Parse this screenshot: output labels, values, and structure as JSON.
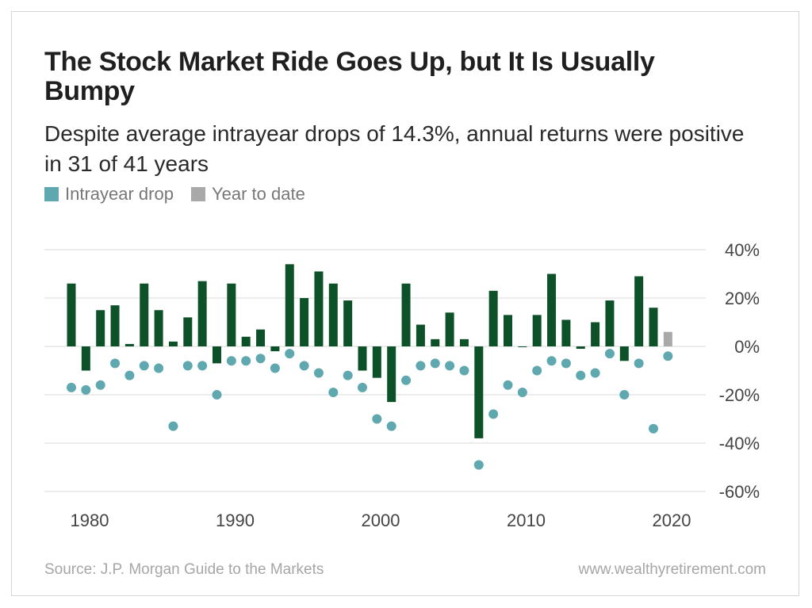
{
  "header": {
    "title": "The Stock Market Ride Goes Up, but It Is Usually Bumpy",
    "subtitle": "Despite average intrayear drops of 14.3%, annual returns were positive in 31 of 41 years"
  },
  "legend": {
    "items": [
      {
        "label": "Intrayear drop",
        "color": "#5fa8b0"
      },
      {
        "label": "Year to date",
        "color": "#a9a9a9"
      }
    ]
  },
  "footer": {
    "source": "Source: J.P. Morgan Guide to the Markets",
    "website": "www.wealthyretirement.com"
  },
  "colors": {
    "annual_return_bar": "#0d5128",
    "intrayear_drop_dot": "#5fa8b0",
    "year_to_date_bar": "#a9a9a9",
    "gridline": "#d9d9d9"
  },
  "chart_data": {
    "type": "bar",
    "ylim": [
      -60,
      40
    ],
    "y_ticks": [
      40,
      20,
      0,
      -20,
      -40,
      -60
    ],
    "y_tick_labels": [
      "40%",
      "20%",
      "0%",
      "-20%",
      "-40%",
      "-60%"
    ],
    "x_ticks": [
      1980,
      1990,
      2000,
      2010,
      2020
    ],
    "x_tick_labels": [
      "1980",
      "1990",
      "2000",
      "2010",
      "2020"
    ],
    "grid": true,
    "legend_position": "top-left",
    "series": [
      {
        "name": "",
        "type": "bar",
        "x": [
          1980,
          1981,
          1982,
          1983,
          1984,
          1985,
          1986,
          1987,
          1988,
          1989,
          1990,
          1991,
          1992,
          1993,
          1994,
          1995,
          1996,
          1997,
          1998,
          1999,
          2000,
          2001,
          2002,
          2003,
          2004,
          2005,
          2006,
          2007,
          2008,
          2009,
          2010,
          2011,
          2012,
          2013,
          2014,
          2015,
          2016,
          2017,
          2018,
          2019,
          2020
        ],
        "values": [
          26,
          -10,
          15,
          17,
          1,
          26,
          15,
          2,
          12,
          27,
          -7,
          26,
          4,
          7,
          -2,
          34,
          20,
          31,
          26,
          19,
          -10,
          -13,
          -23,
          26,
          9,
          3,
          14,
          3,
          -38,
          23,
          13,
          0,
          13,
          30,
          11,
          -1,
          10,
          19,
          -6,
          29,
          16
        ]
      },
      {
        "name": "Intrayear drop",
        "type": "scatter",
        "x": [
          1980,
          1981,
          1982,
          1983,
          1984,
          1985,
          1986,
          1987,
          1988,
          1989,
          1990,
          1991,
          1992,
          1993,
          1994,
          1995,
          1996,
          1997,
          1998,
          1999,
          2000,
          2001,
          2002,
          2003,
          2004,
          2005,
          2006,
          2007,
          2008,
          2009,
          2010,
          2011,
          2012,
          2013,
          2014,
          2015,
          2016,
          2017,
          2018,
          2019,
          2020,
          2021
        ],
        "values": [
          -17,
          -18,
          -16,
          -7,
          -12,
          -8,
          -9,
          -33,
          -8,
          -8,
          -20,
          -6,
          -6,
          -5,
          -9,
          -3,
          -8,
          -11,
          -19,
          -12,
          -17,
          -30,
          -33,
          -14,
          -8,
          -7,
          -8,
          -10,
          -49,
          -28,
          -16,
          -19,
          -10,
          -6,
          -7,
          -12,
          -11,
          -3,
          -20,
          -7,
          -34,
          -4
        ]
      },
      {
        "name": "Year to date",
        "type": "bar",
        "x": [
          2021
        ],
        "values": [
          6
        ]
      }
    ]
  }
}
